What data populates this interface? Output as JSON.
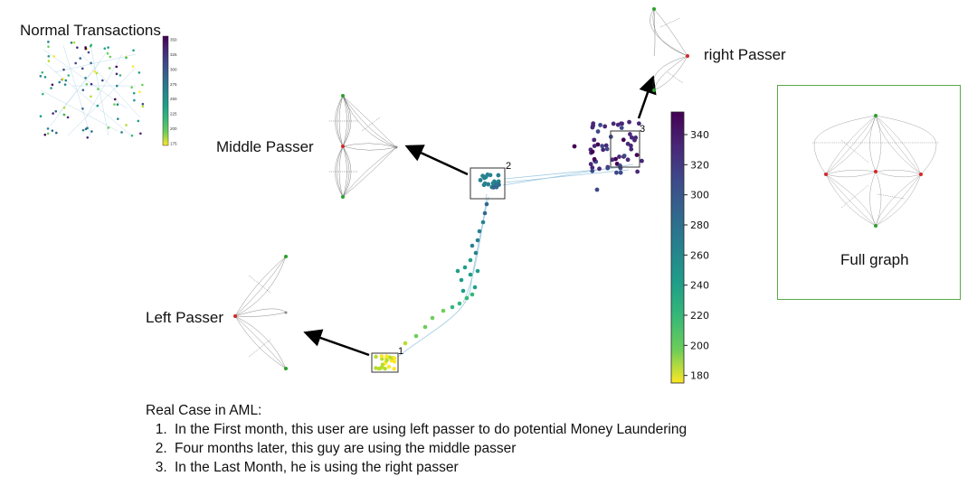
{
  "labels": {
    "normal_transactions": "Normal Transactions",
    "middle_passer": "Middle Passer",
    "left_passer": "Left Passer",
    "right_passer": "right Passer",
    "full_graph": "Full graph"
  },
  "box_markers": [
    "1",
    "2",
    "3"
  ],
  "colorbar": {
    "colormap": "viridis (reversed)",
    "ticks": [
      "340",
      "320",
      "300",
      "280",
      "260",
      "240",
      "220",
      "200",
      "180"
    ],
    "range": [
      175,
      355
    ]
  },
  "mini_colorbar": {
    "ticks": [
      "350",
      "325",
      "300",
      "275",
      "250",
      "225",
      "200",
      "175"
    ]
  },
  "notes": {
    "heading": "Real Case in AML:",
    "items": [
      "In the First month, this user are using left passer to do potential Money Laundering",
      "Four months later, this guy are using the middle passer",
      "In the Last Month, he is using the right passer"
    ]
  },
  "colors": {
    "arrow": "#000000",
    "fullgraph_border": "#5aa94a",
    "node_red": "#d62728",
    "node_green": "#2ca02c"
  }
}
